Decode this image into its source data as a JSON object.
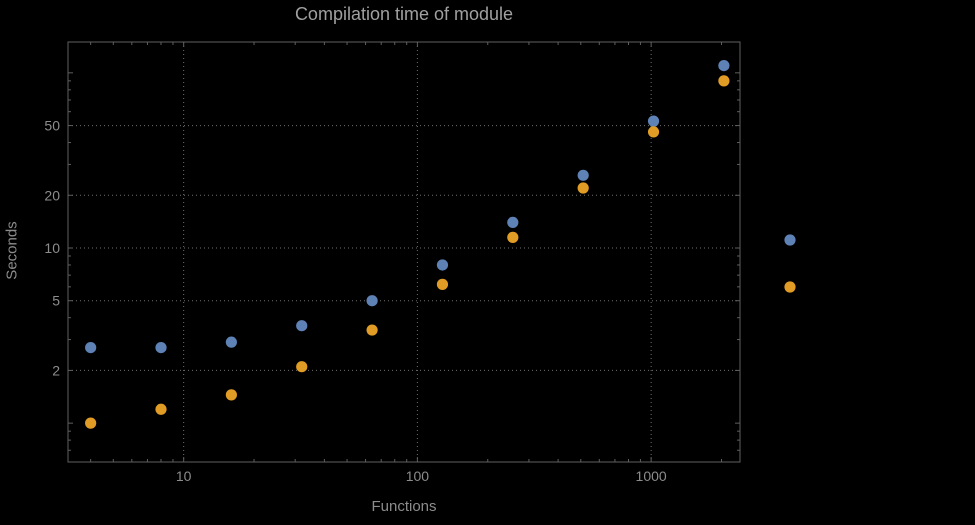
{
  "chart_data": {
    "type": "scatter",
    "title": "Compilation time of module",
    "xlabel": "Functions",
    "ylabel": "Seconds",
    "x_scale": "log",
    "y_scale": "log",
    "xlim": [
      3.2,
      2400
    ],
    "ylim": [
      0.6,
      150
    ],
    "x_ticks": [
      10,
      100,
      1000
    ],
    "y_ticks": [
      2,
      5,
      10,
      20,
      50
    ],
    "grid": "dotted",
    "x": [
      4,
      8,
      16,
      32,
      64,
      128,
      256,
      512,
      1024,
      2048
    ],
    "series": [
      {
        "name": "series-blue",
        "color": "#5E82B5",
        "values": [
          2.7,
          2.7,
          2.9,
          3.6,
          5.0,
          8.0,
          14,
          26,
          53,
          110
        ]
      },
      {
        "name": "series-orange",
        "color": "#E09C24",
        "values": [
          1.0,
          1.2,
          1.45,
          2.1,
          3.4,
          6.2,
          11.5,
          22,
          46,
          90
        ]
      }
    ],
    "legend": {
      "position": "right-outside",
      "markers": [
        {
          "name": "legend-marker-blue",
          "color": "#5E82B5"
        },
        {
          "name": "legend-marker-orange",
          "color": "#E09C24"
        }
      ]
    }
  },
  "colors": {
    "background": "#000000",
    "title": "#a0a0a0",
    "label": "#8c8c8c",
    "tick_label": "#8c8c8c",
    "frame": "#5f5f5f",
    "grid": "#6e6e6e"
  }
}
